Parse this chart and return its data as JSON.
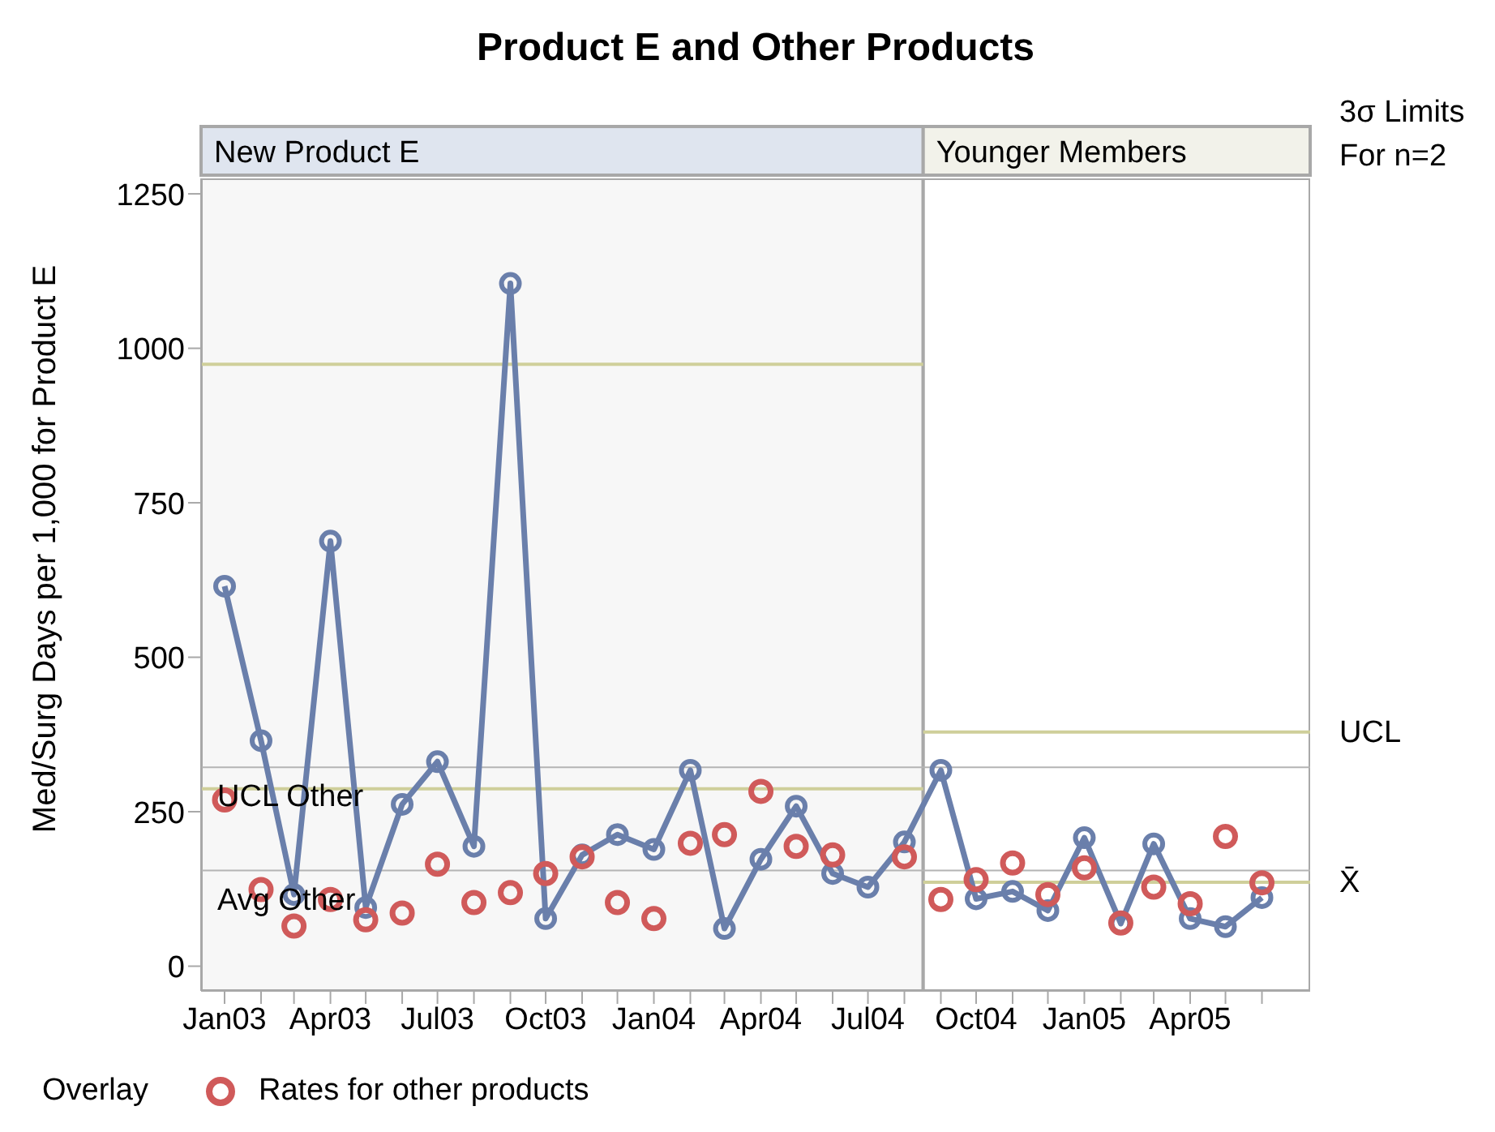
{
  "chart_data": {
    "type": "line",
    "title": "Product E and Other Products",
    "ylabel": "Med/Surg Days per 1,000 for Product E",
    "legend_title": "Overlay",
    "legend": "bottom",
    "marker": "circle",
    "grid": false,
    "annotations": [
      "3σ Limits\nFor n=2"
    ],
    "x": [
      "2003-01",
      "2003-02",
      "2003-03",
      "2003-04",
      "2003-05",
      "2003-06",
      "2003-07",
      "2003-08",
      "2003-09",
      "2003-10",
      "2003-11",
      "2003-12",
      "2004-01",
      "2004-02",
      "2004-03",
      "2004-04",
      "2004-05",
      "2004-06",
      "2004-07",
      "2004-08",
      "2004-09",
      "2004-10",
      "2004-11",
      "2004-12",
      "2005-01",
      "2005-02",
      "2005-03",
      "2005-04",
      "2005-05",
      "2005-06"
    ],
    "xlim": [
      "2002-12-12",
      "2005-07-12"
    ],
    "xticks": [
      {
        "value": "2003-01",
        "label": "Jan03"
      },
      {
        "value": "2003-02",
        "label": null
      },
      {
        "value": "2003-03",
        "label": null
      },
      {
        "value": "2003-04",
        "label": "Apr03"
      },
      {
        "value": "2003-05",
        "label": null
      },
      {
        "value": "2003-06",
        "label": null
      },
      {
        "value": "2003-07",
        "label": "Jul03"
      },
      {
        "value": "2003-08",
        "label": null
      },
      {
        "value": "2003-09",
        "label": null
      },
      {
        "value": "2003-10",
        "label": "Oct03"
      },
      {
        "value": "2003-11",
        "label": null
      },
      {
        "value": "2003-12",
        "label": null
      },
      {
        "value": "2004-01",
        "label": "Jan04"
      },
      {
        "value": "2004-02",
        "label": null
      },
      {
        "value": "2004-03",
        "label": null
      },
      {
        "value": "2004-04",
        "label": "Apr04"
      },
      {
        "value": "2004-05",
        "label": null
      },
      {
        "value": "2004-06",
        "label": null
      },
      {
        "value": "2004-07",
        "label": "Jul04"
      },
      {
        "value": "2004-08",
        "label": null
      },
      {
        "value": "2004-09",
        "label": null
      },
      {
        "value": "2004-10",
        "label": "Oct04"
      },
      {
        "value": "2004-11",
        "label": null
      },
      {
        "value": "2004-12",
        "label": null
      },
      {
        "value": "2005-01",
        "label": "Jan05"
      },
      {
        "value": "2005-02",
        "label": null
      },
      {
        "value": "2005-03",
        "label": null
      },
      {
        "value": "2005-04",
        "label": "Apr05"
      },
      {
        "value": "2005-05",
        "label": null
      },
      {
        "value": "2005-06",
        "label": null
      }
    ],
    "ylim": [
      -40,
      1275
    ],
    "yticks": [
      0,
      250,
      500,
      750,
      1000,
      1250
    ],
    "bands": [
      {
        "axis": "x",
        "from": "2002-12-12",
        "to": "2004-08-17",
        "label": "New Product E",
        "color": "#f7f7f7"
      },
      {
        "axis": "x",
        "from": "2004-08-17",
        "to": "2005-07-12",
        "label": "Younger Members",
        "color": "#ffffff"
      }
    ],
    "ref_lines": [
      {
        "axis": "y",
        "value": 322,
        "label": "UCL Other",
        "color": "#b4b4b4"
      },
      {
        "axis": "y",
        "value": 155,
        "label": "Avg Other",
        "color": "#b4b4b4"
      }
    ],
    "series": [
      {
        "type": "line",
        "x": [
          "2002-12-12",
          "2004-08-17"
        ],
        "values": [
          974,
          974
        ],
        "color": "#cfcf9a",
        "marker": "none"
      },
      {
        "type": "line",
        "x": [
          "2002-12-12",
          "2004-08-17"
        ],
        "values": [
          287,
          287
        ],
        "color": "#cfcf9a",
        "marker": "none"
      },
      {
        "type": "line",
        "name": "UCL",
        "x": [
          "2004-08-17",
          "2005-07-12"
        ],
        "values": [
          379,
          379
        ],
        "color": "#cfcf9a",
        "marker": "none"
      },
      {
        "type": "line",
        "name": "X̄",
        "x": [
          "2004-08-17",
          "2005-07-12"
        ],
        "values": [
          136,
          136
        ],
        "color": "#cfcf9a",
        "marker": "none"
      },
      {
        "color": "#6a7fab",
        "values": [
          615,
          365,
          116,
          688,
          95,
          262,
          331,
          194,
          1105,
          77,
          180,
          213,
          189,
          317,
          61,
          173,
          259,
          150,
          128,
          201,
          317,
          109,
          121,
          90,
          208,
          69,
          198,
          77,
          64,
          111
        ]
      },
      {
        "type": "scatter",
        "name": "Rates for other products",
        "color": "#d05a5a",
        "values": [
          269,
          124,
          65,
          108,
          75,
          86,
          165,
          103,
          119,
          150,
          177,
          103,
          77,
          199,
          213,
          283,
          194,
          180,
          null,
          177,
          108,
          140,
          167,
          116,
          159,
          70,
          128,
          101,
          210,
          135
        ]
      }
    ]
  }
}
